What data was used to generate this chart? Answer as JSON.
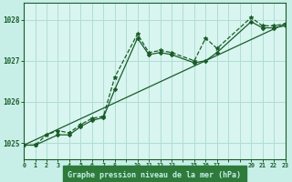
{
  "background_color": "#c8eee8",
  "plot_bg_color": "#d8f5f0",
  "grid_color": "#b0ddd4",
  "line_color": "#1a5c28",
  "xlabel": "Graphe pression niveau de la mer (hPa)",
  "xlabel_bg": "#2d7a3a",
  "xlabel_fg": "#c8eee8",
  "xlim": [
    0,
    23
  ],
  "ylim": [
    1024.6,
    1028.4
  ],
  "yticks": [
    1025,
    1026,
    1027,
    1028
  ],
  "xtick_positions": [
    0,
    1,
    2,
    3,
    4,
    5,
    6,
    7,
    8,
    9,
    10,
    11,
    12,
    13,
    14,
    15,
    16,
    17,
    18,
    19,
    20,
    21,
    22,
    23
  ],
  "xtick_labels": [
    "0",
    "1",
    "2",
    "3",
    "4",
    "5",
    "6",
    "7",
    "8",
    "",
    "10",
    "11",
    "12",
    "13",
    "",
    "15",
    "16",
    "17",
    "",
    "",
    "20",
    "21",
    "22",
    "23"
  ],
  "series1_x": [
    0,
    1,
    2,
    3,
    4,
    5,
    6,
    7,
    8,
    10,
    11,
    12,
    13,
    15,
    16,
    17,
    20,
    21,
    22,
    23
  ],
  "series1_y": [
    1024.95,
    1024.95,
    1025.2,
    1025.3,
    1025.25,
    1025.45,
    1025.6,
    1025.65,
    1026.6,
    1027.65,
    1027.2,
    1027.25,
    1027.2,
    1027.0,
    1027.55,
    1027.3,
    1028.05,
    1027.85,
    1027.85,
    1027.9
  ],
  "series2_x": [
    0,
    1,
    3,
    4,
    5,
    6,
    7,
    8,
    10,
    11,
    12,
    13,
    15,
    16,
    17,
    20,
    21,
    22,
    23
  ],
  "series2_y": [
    1024.95,
    1024.95,
    1025.2,
    1025.2,
    1025.4,
    1025.55,
    1025.62,
    1026.3,
    1027.55,
    1027.15,
    1027.2,
    1027.15,
    1026.95,
    1027.0,
    1027.2,
    1027.95,
    1027.8,
    1027.8,
    1027.85
  ],
  "series3_x": [
    0,
    23
  ],
  "series3_y": [
    1024.95,
    1027.9
  ]
}
